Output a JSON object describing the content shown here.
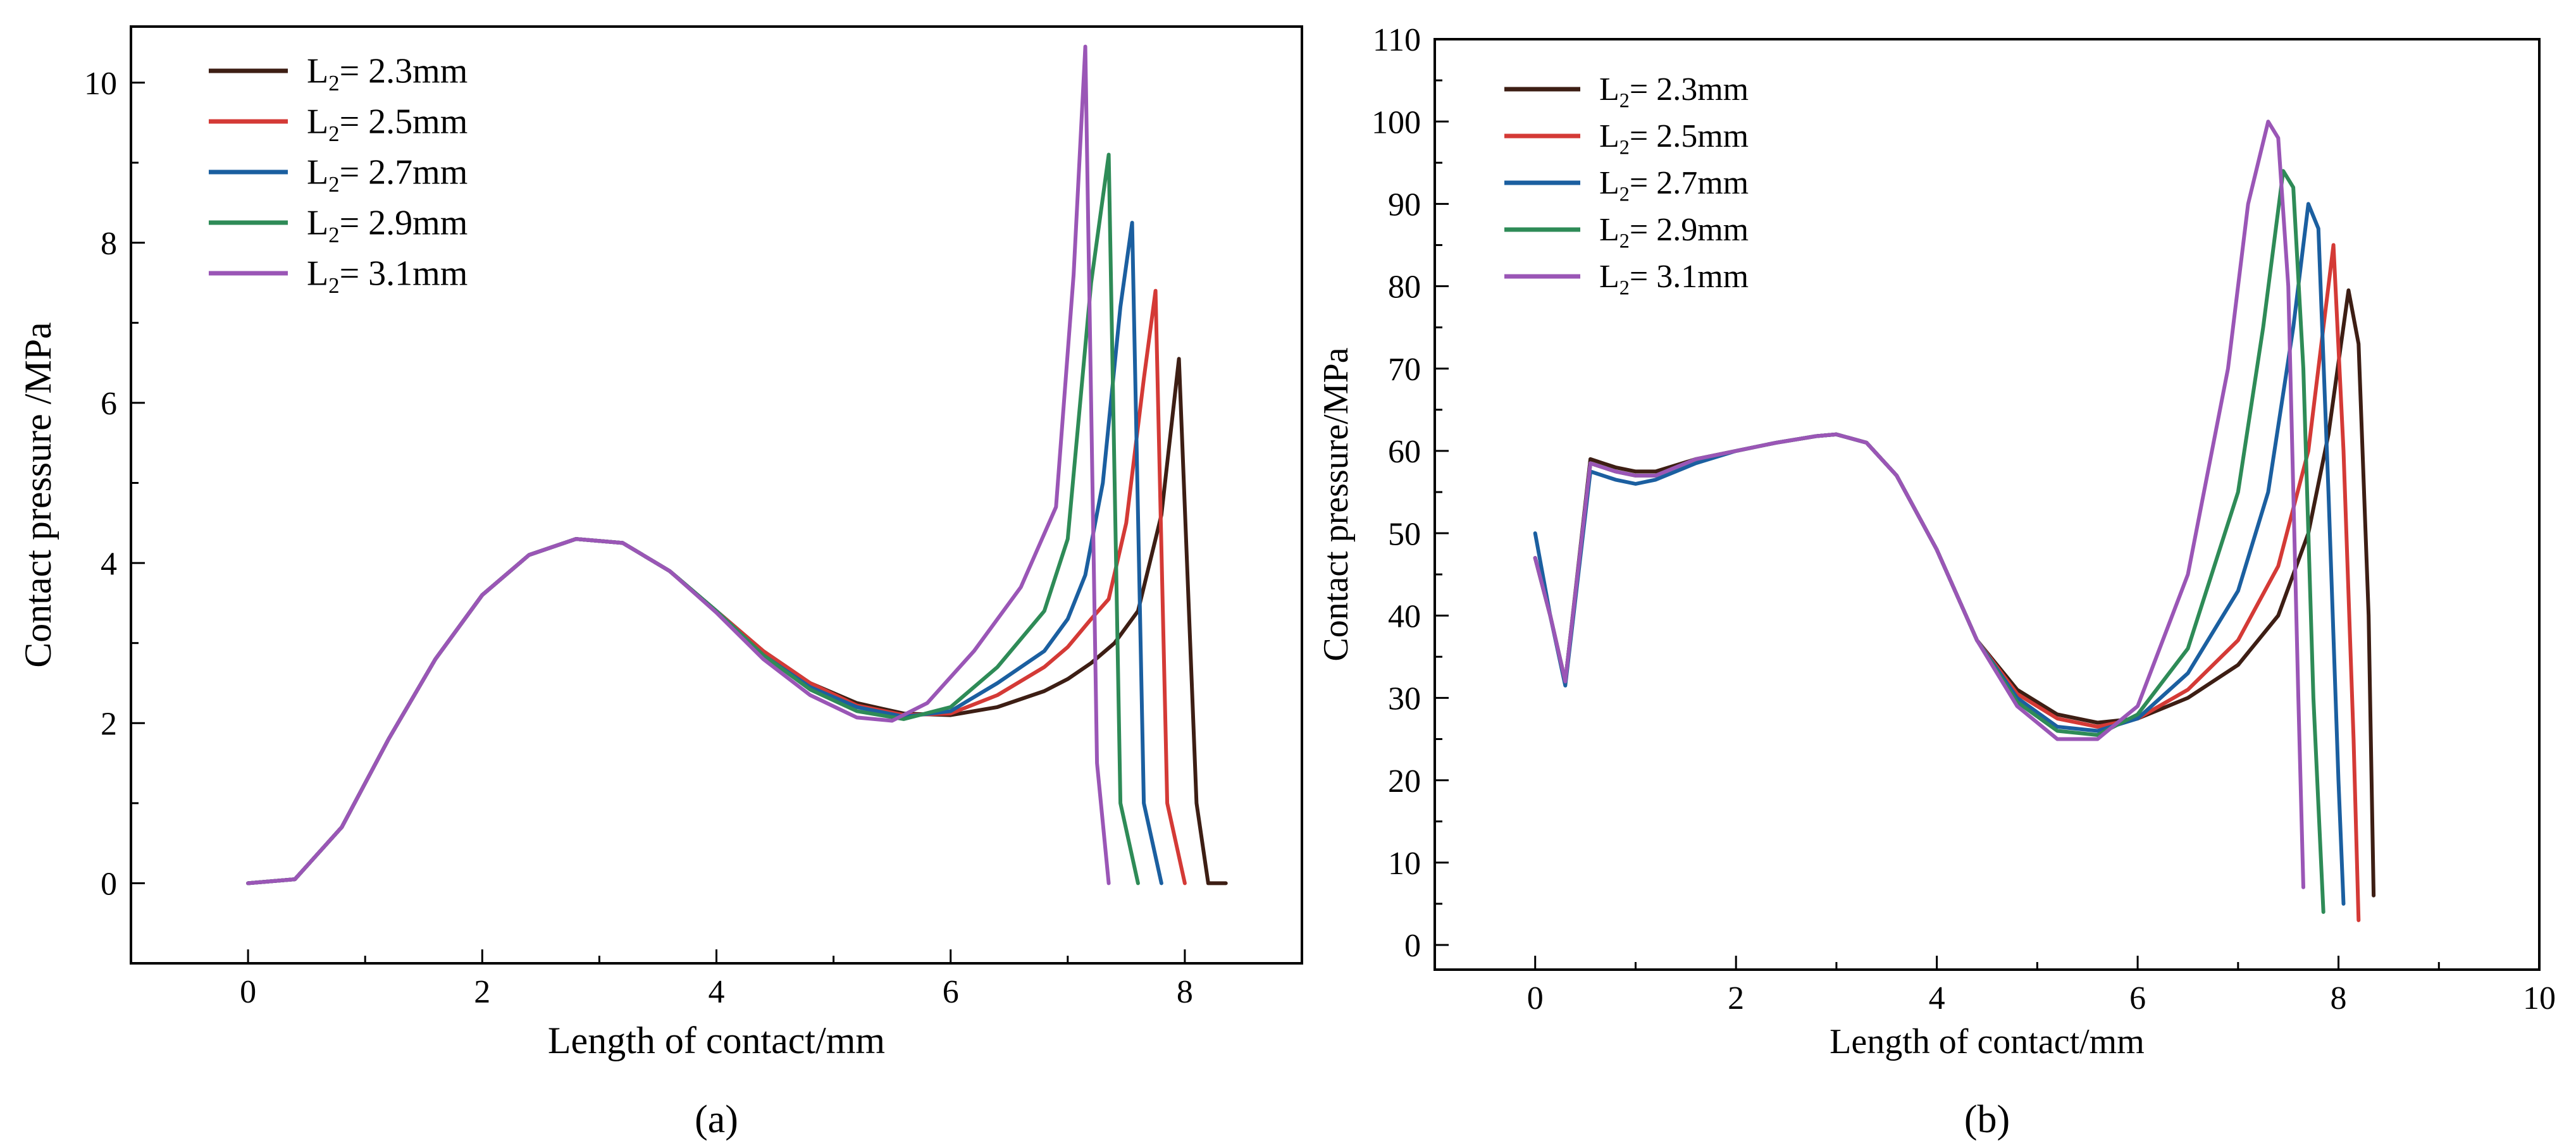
{
  "chart_data": [
    {
      "type": "line",
      "panel_label": "(a)",
      "xlabel": "Length of contact/mm",
      "ylabel": "Contact pressure /MPa",
      "xlim": [
        -1,
        9
      ],
      "ylim": [
        -1,
        10.7
      ],
      "xticks": [
        0,
        2,
        4,
        6,
        8
      ],
      "yticks": [
        0,
        2,
        4,
        6,
        8,
        10
      ],
      "legend_position": "top-left",
      "series": [
        {
          "name": "L2=2.3mm",
          "sub_prefix": "L",
          "sub": "2",
          "suffix": "= 2.3mm",
          "color": "#3d1e14",
          "x": [
            0,
            0.4,
            0.8,
            1.2,
            1.6,
            2.0,
            2.4,
            2.8,
            3.2,
            3.6,
            4.0,
            4.4,
            4.8,
            5.2,
            5.6,
            6.0,
            6.4,
            6.8,
            7.0,
            7.2,
            7.4,
            7.6,
            7.8,
            7.95,
            8.1,
            8.2,
            8.35
          ],
          "y": [
            0,
            0.05,
            0.7,
            1.8,
            2.8,
            3.6,
            4.1,
            4.3,
            4.25,
            3.9,
            3.4,
            2.9,
            2.5,
            2.25,
            2.12,
            2.1,
            2.2,
            2.4,
            2.55,
            2.75,
            3.0,
            3.4,
            4.6,
            6.55,
            1.0,
            0,
            0
          ]
        },
        {
          "name": "L2=2.5mm",
          "sub_prefix": "L",
          "sub": "2",
          "suffix": "= 2.5mm",
          "color": "#d43a36",
          "x": [
            0,
            0.4,
            0.8,
            1.2,
            1.6,
            2.0,
            2.4,
            2.8,
            3.2,
            3.6,
            4.0,
            4.4,
            4.8,
            5.2,
            5.6,
            6.0,
            6.4,
            6.8,
            7.0,
            7.2,
            7.35,
            7.5,
            7.65,
            7.75,
            7.85,
            8.0
          ],
          "y": [
            0,
            0.05,
            0.7,
            1.8,
            2.8,
            3.6,
            4.1,
            4.3,
            4.25,
            3.9,
            3.4,
            2.9,
            2.5,
            2.22,
            2.1,
            2.12,
            2.35,
            2.7,
            2.95,
            3.3,
            3.55,
            4.5,
            6.3,
            7.4,
            1.0,
            0
          ]
        },
        {
          "name": "L2=2.7mm",
          "sub_prefix": "L",
          "sub": "2",
          "suffix": "= 2.7mm",
          "color": "#1b5fa0",
          "x": [
            0,
            0.4,
            0.8,
            1.2,
            1.6,
            2.0,
            2.4,
            2.8,
            3.2,
            3.6,
            4.0,
            4.4,
            4.8,
            5.2,
            5.6,
            6.0,
            6.4,
            6.8,
            7.0,
            7.15,
            7.3,
            7.45,
            7.55,
            7.65,
            7.8
          ],
          "y": [
            0,
            0.05,
            0.7,
            1.8,
            2.8,
            3.6,
            4.1,
            4.3,
            4.25,
            3.9,
            3.4,
            2.85,
            2.45,
            2.2,
            2.08,
            2.15,
            2.5,
            2.9,
            3.3,
            3.85,
            5.0,
            7.2,
            8.25,
            1.0,
            0
          ]
        },
        {
          "name": "L2=2.9mm",
          "sub_prefix": "L",
          "sub": "2",
          "suffix": "= 2.9mm",
          "color": "#2e8b57",
          "x": [
            0,
            0.4,
            0.8,
            1.2,
            1.6,
            2.0,
            2.4,
            2.8,
            3.2,
            3.6,
            4.0,
            4.4,
            4.8,
            5.2,
            5.6,
            6.0,
            6.4,
            6.8,
            7.0,
            7.2,
            7.35,
            7.45,
            7.6
          ],
          "y": [
            0,
            0.05,
            0.7,
            1.8,
            2.8,
            3.6,
            4.1,
            4.3,
            4.25,
            3.9,
            3.4,
            2.85,
            2.42,
            2.15,
            2.05,
            2.2,
            2.7,
            3.4,
            4.3,
            7.5,
            9.1,
            1.0,
            0
          ]
        },
        {
          "name": "L2=3.1mm",
          "sub_prefix": "L",
          "sub": "2",
          "suffix": "= 3.1mm",
          "color": "#9a56b6",
          "x": [
            0,
            0.4,
            0.8,
            1.2,
            1.6,
            2.0,
            2.4,
            2.8,
            3.2,
            3.6,
            4.0,
            4.4,
            4.8,
            5.2,
            5.5,
            5.8,
            6.2,
            6.6,
            6.9,
            7.05,
            7.15,
            7.25,
            7.35
          ],
          "y": [
            0,
            0.05,
            0.7,
            1.8,
            2.8,
            3.6,
            4.1,
            4.3,
            4.25,
            3.9,
            3.38,
            2.8,
            2.35,
            2.07,
            2.03,
            2.25,
            2.9,
            3.7,
            4.7,
            7.6,
            10.45,
            1.5,
            0
          ]
        }
      ]
    },
    {
      "type": "line",
      "panel_label": "(b)",
      "xlabel": "Length of contact/mm",
      "ylabel": "Contact pressure/MPa",
      "xlim": [
        -1,
        10
      ],
      "ylim": [
        -3,
        110
      ],
      "xticks": [
        0,
        2,
        4,
        6,
        8,
        10
      ],
      "yticks": [
        0,
        10,
        20,
        30,
        40,
        50,
        60,
        70,
        80,
        90,
        100,
        110
      ],
      "legend_position": "top-left",
      "series": [
        {
          "name": "L2=2.3mm",
          "sub_prefix": "L",
          "sub": "2",
          "suffix": "= 2.3mm",
          "color": "#3d1e14",
          "x": [
            0,
            0.15,
            0.3,
            0.55,
            0.8,
            1.0,
            1.2,
            1.6,
            2.0,
            2.4,
            2.8,
            3.0,
            3.3,
            3.6,
            4.0,
            4.4,
            4.8,
            5.2,
            5.6,
            6.0,
            6.5,
            7.0,
            7.4,
            7.7,
            7.9,
            8.1,
            8.2,
            8.3,
            8.35
          ],
          "y": [
            47,
            40,
            32,
            59,
            58,
            57.5,
            57.5,
            59,
            60,
            61,
            61.8,
            62,
            61,
            57,
            48,
            37,
            31,
            28,
            27,
            27.5,
            30,
            34,
            40,
            50,
            62,
            79.5,
            73,
            40,
            6
          ]
        },
        {
          "name": "L2=2.5mm",
          "sub_prefix": "L",
          "sub": "2",
          "suffix": "= 2.5mm",
          "color": "#d43a36",
          "x": [
            0,
            0.15,
            0.3,
            0.55,
            0.8,
            1.0,
            1.2,
            1.6,
            2.0,
            2.4,
            2.8,
            3.0,
            3.3,
            3.6,
            4.0,
            4.4,
            4.8,
            5.2,
            5.6,
            6.0,
            6.5,
            7.0,
            7.4,
            7.7,
            7.85,
            7.95,
            8.05,
            8.15,
            8.2
          ],
          "y": [
            47,
            40,
            32,
            58.5,
            57.5,
            57,
            57,
            59,
            60,
            61,
            61.8,
            62,
            61,
            57,
            48,
            37,
            30.5,
            27.5,
            26.5,
            27.5,
            31,
            37,
            46,
            60,
            75,
            85,
            60,
            25,
            3
          ]
        },
        {
          "name": "L2=2.7mm",
          "sub_prefix": "L",
          "sub": "2",
          "suffix": "= 2.7mm",
          "color": "#1b5fa0",
          "x": [
            0,
            0.15,
            0.3,
            0.55,
            0.8,
            1.0,
            1.2,
            1.6,
            2.0,
            2.4,
            2.8,
            3.0,
            3.3,
            3.6,
            4.0,
            4.4,
            4.8,
            5.2,
            5.6,
            6.0,
            6.5,
            7.0,
            7.3,
            7.55,
            7.7,
            7.8,
            7.9,
            8.0,
            8.05
          ],
          "y": [
            50,
            40,
            31.5,
            57.5,
            56.5,
            56,
            56.5,
            58.5,
            60,
            61,
            61.8,
            62,
            61,
            57,
            48,
            37,
            30,
            26.5,
            26,
            27.5,
            33,
            43,
            55,
            75,
            90,
            87,
            55,
            20,
            5
          ]
        },
        {
          "name": "L2=2.9mm",
          "sub_prefix": "L",
          "sub": "2",
          "suffix": "= 2.9mm",
          "color": "#2e8b57",
          "x": [
            0,
            0.15,
            0.3,
            0.55,
            0.8,
            1.0,
            1.2,
            1.6,
            2.0,
            2.4,
            2.8,
            3.0,
            3.3,
            3.6,
            4.0,
            4.4,
            4.8,
            5.2,
            5.6,
            6.0,
            6.5,
            7.0,
            7.25,
            7.45,
            7.55,
            7.65,
            7.75,
            7.85
          ],
          "y": [
            47,
            40,
            32,
            58.5,
            57.5,
            57,
            57,
            59,
            60,
            61,
            61.8,
            62,
            61,
            57,
            48,
            37,
            29.5,
            26,
            25.5,
            28,
            36,
            55,
            75,
            94,
            92,
            70,
            30,
            4
          ]
        },
        {
          "name": "L2=3.1mm",
          "sub_prefix": "L",
          "sub": "2",
          "suffix": "= 3.1mm",
          "color": "#9a56b6",
          "x": [
            0,
            0.15,
            0.3,
            0.55,
            0.8,
            1.0,
            1.2,
            1.6,
            2.0,
            2.4,
            2.8,
            3.0,
            3.3,
            3.6,
            4.0,
            4.4,
            4.8,
            5.2,
            5.6,
            6.0,
            6.5,
            6.9,
            7.1,
            7.3,
            7.4,
            7.5,
            7.6,
            7.65
          ],
          "y": [
            47,
            40,
            32,
            58.5,
            57.5,
            57,
            57,
            59,
            60,
            61,
            61.8,
            62,
            61,
            57,
            48,
            37,
            29,
            25,
            25,
            29,
            45,
            70,
            90,
            100,
            98,
            80,
            30,
            7
          ]
        }
      ]
    }
  ]
}
